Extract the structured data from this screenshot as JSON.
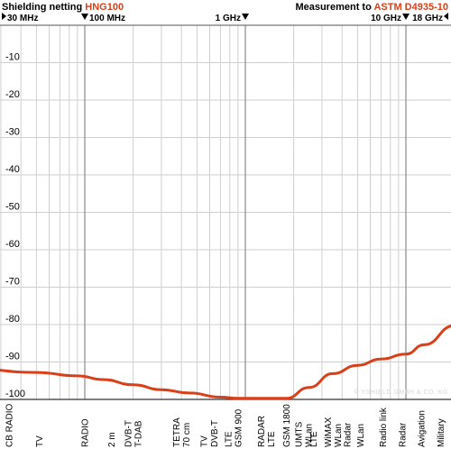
{
  "header": {
    "left_prefix": "Shielding netting ",
    "left_product": "HNG100",
    "right_prefix": "Measurement to ",
    "right_standard": "ASTM D4935-10"
  },
  "watermark": "© YSHIELD GMBH & CO. KG",
  "colors": {
    "accent": "#d9401a",
    "curve": "#d9401a",
    "major_grid": "#8a8a8a",
    "minor_grid": "#d0d0d0",
    "hline": "#cfcfcf"
  },
  "chart_data": {
    "type": "line",
    "x_scale": "log",
    "xlim_mhz": [
      30,
      18000
    ],
    "ylim": [
      -100,
      0
    ],
    "y_ticks": [
      -10,
      -20,
      -30,
      -40,
      -50,
      -60,
      -70,
      -80,
      -90,
      -100
    ],
    "y_tick_labels": [
      "-10",
      "-20",
      "-30",
      "-40",
      "-50",
      "-60",
      "-70",
      "-80",
      "-90",
      "-100"
    ],
    "freq_markers": [
      {
        "label": "30 MHz",
        "mhz": 30,
        "arrow": "right",
        "row": 1
      },
      {
        "label": "100 MHz",
        "mhz": 100,
        "arrow": "down",
        "row": 1
      },
      {
        "label": "1 GHz",
        "mhz": 1000,
        "arrow": "down",
        "row": 1
      },
      {
        "label": "10 GHz",
        "mhz": 10000,
        "arrow": "down",
        "row": 2
      },
      {
        "label": "18 GHz",
        "mhz": 18000,
        "arrow": "left",
        "row": 2
      }
    ],
    "categories": [
      {
        "lines": [
          "CB RADIO"
        ],
        "mhz": 27
      },
      {
        "lines": [
          "TV"
        ],
        "mhz": 52
      },
      {
        "lines": [
          "RADIO"
        ],
        "mhz": 100
      },
      {
        "lines": [
          "2 m"
        ],
        "mhz": 146
      },
      {
        "lines": [
          "DVB-T",
          "T-DAB"
        ],
        "mhz": 200
      },
      {
        "lines": [
          "TETRA",
          "70 cm"
        ],
        "mhz": 400
      },
      {
        "lines": [
          "TV"
        ],
        "mhz": 550
      },
      {
        "lines": [
          "DVB-T"
        ],
        "mhz": 640
      },
      {
        "lines": [
          "LTE"
        ],
        "mhz": 780
      },
      {
        "lines": [
          "GSM 900"
        ],
        "mhz": 900
      },
      {
        "lines": [
          "RADAR",
          "LTE"
        ],
        "mhz": 1350
      },
      {
        "lines": [
          "GSM 1800"
        ],
        "mhz": 1800
      },
      {
        "lines": [
          "UMTS",
          "WLan"
        ],
        "mhz": 2300
      },
      {
        "lines": [
          "LTE"
        ],
        "mhz": 2650
      },
      {
        "lines": [
          "WiMAX",
          "WLan"
        ],
        "mhz": 3500
      },
      {
        "lines": [
          "Radar"
        ],
        "mhz": 4300
      },
      {
        "lines": [
          "WLan"
        ],
        "mhz": 5200
      },
      {
        "lines": [
          "Radio link"
        ],
        "mhz": 7200
      },
      {
        "lines": [
          "Radar"
        ],
        "mhz": 9500
      },
      {
        "lines": [
          "Avigation"
        ],
        "mhz": 12500
      },
      {
        "lines": [
          "Military"
        ],
        "mhz": 16500
      }
    ],
    "series": [
      {
        "x_mhz": [
          17,
          50,
          90,
          130,
          200,
          300,
          450,
          700,
          900,
          1800,
          2500,
          3500,
          5000,
          7000,
          10000,
          13000,
          20000
        ],
        "y_db": [
          -91.5,
          -92.8,
          -93.7,
          -94.7,
          -96.1,
          -97.4,
          -98.3,
          -99.4,
          -99.7,
          -99.7,
          -96.8,
          -93.1,
          -90.9,
          -89.2,
          -87.9,
          -85.4,
          -80.3
        ]
      }
    ]
  }
}
